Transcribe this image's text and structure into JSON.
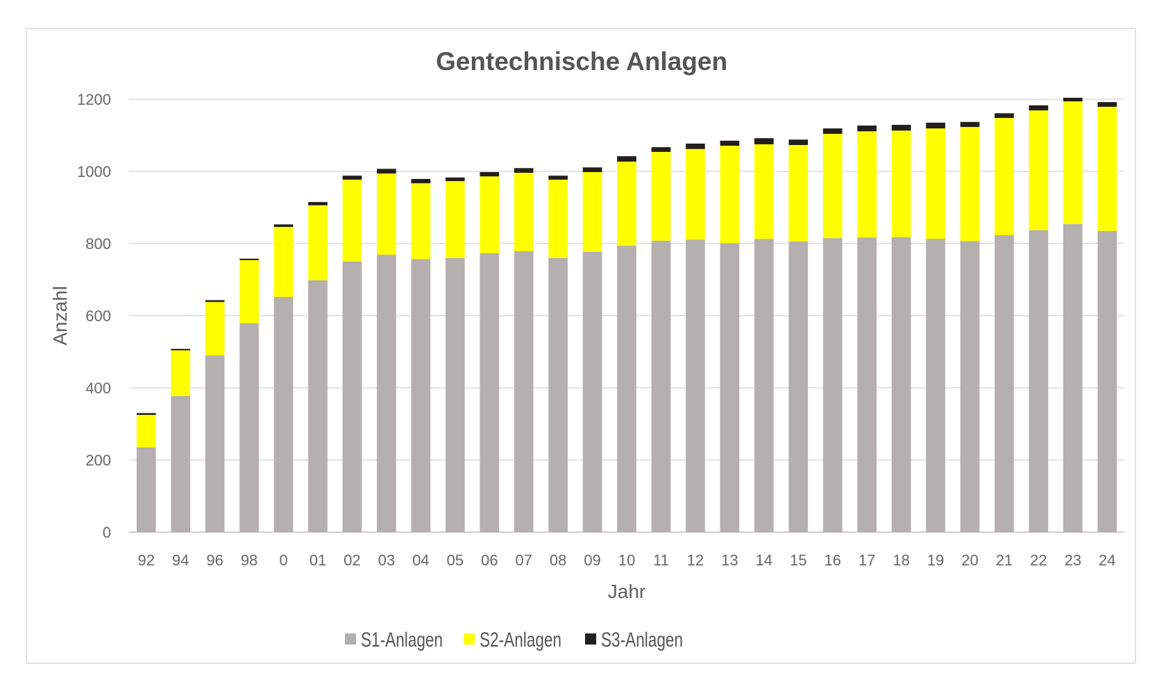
{
  "chart_data": {
    "type": "bar",
    "stacked": true,
    "title": "Gentechnische Anlagen",
    "xlabel": "Jahr",
    "ylabel": "Anzahl",
    "ylim": [
      0,
      1200
    ],
    "yticks": [
      0,
      200,
      400,
      600,
      800,
      1000,
      1200
    ],
    "grid": true,
    "legend_position": "bottom",
    "categories": [
      "92",
      "94",
      "96",
      "98",
      "0",
      "01",
      "02",
      "03",
      "04",
      "05",
      "06",
      "07",
      "08",
      "09",
      "10",
      "11",
      "12",
      "13",
      "14",
      "15",
      "16",
      "17",
      "18",
      "19",
      "20",
      "21",
      "22",
      "23",
      "24"
    ],
    "series": [
      {
        "name": "S1-Anlagen",
        "color": "#b5afaf",
        "values": [
          235,
          377,
          490,
          579,
          652,
          698,
          750,
          769,
          757,
          760,
          773,
          779,
          760,
          777,
          794,
          808,
          811,
          801,
          813,
          806,
          815,
          817,
          818,
          813,
          807,
          823,
          837,
          854,
          835
        ]
      },
      {
        "name": "S2-Anlagen",
        "color": "#ffff00",
        "values": [
          90,
          127,
          148,
          175,
          194,
          208,
          227,
          225,
          210,
          213,
          213,
          217,
          217,
          221,
          233,
          246,
          251,
          270,
          262,
          267,
          289,
          294,
          295,
          306,
          316,
          325,
          332,
          340,
          344
        ]
      },
      {
        "name": "S3-Anlagen",
        "color": "#231f1a",
        "values": [
          5,
          4,
          5,
          4,
          7,
          9,
          11,
          13,
          12,
          10,
          12,
          13,
          11,
          13,
          15,
          13,
          15,
          14,
          17,
          15,
          15,
          16,
          16,
          16,
          14,
          13,
          14,
          10,
          13
        ]
      }
    ]
  }
}
